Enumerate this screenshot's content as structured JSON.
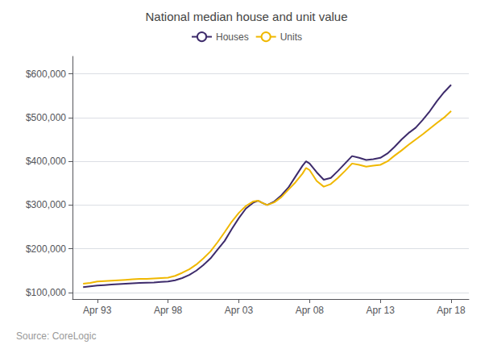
{
  "chart_data": {
    "type": "line",
    "title": "National median house and unit value",
    "annotations": [
      "Source: CoreLogic"
    ],
    "x": [
      1992.25,
      1992.75,
      1993.25,
      1993.75,
      1994.25,
      1994.75,
      1995.25,
      1995.75,
      1996.25,
      1996.75,
      1997.25,
      1997.75,
      1998.25,
      1998.75,
      1999.25,
      1999.75,
      2000.25,
      2000.75,
      2001.25,
      2001.75,
      2002.25,
      2002.75,
      2003.25,
      2003.75,
      2004.25,
      2004.6,
      2004.9,
      2005.25,
      2005.75,
      2006.25,
      2006.75,
      2007.25,
      2007.75,
      2008.0,
      2008.25,
      2008.75,
      2009.25,
      2009.75,
      2010.25,
      2010.75,
      2011.25,
      2011.75,
      2012.25,
      2012.75,
      2013.25,
      2013.75,
      2014.25,
      2014.75,
      2015.25,
      2015.75,
      2016.25,
      2016.75,
      2017.25,
      2017.75,
      2018.25
    ],
    "series": [
      {
        "name": "Houses",
        "color": "#3d2b6b",
        "values": [
          112000,
          114000,
          116000,
          117000,
          118000,
          119000,
          120000,
          121000,
          122000,
          122500,
          123000,
          124000,
          125000,
          128000,
          133000,
          140000,
          150000,
          163000,
          178000,
          198000,
          218000,
          245000,
          270000,
          292000,
          305000,
          310000,
          305000,
          300000,
          308000,
          322000,
          340000,
          365000,
          390000,
          400000,
          395000,
          375000,
          358000,
          362000,
          378000,
          395000,
          412000,
          408000,
          403000,
          405000,
          408000,
          418000,
          433000,
          450000,
          465000,
          477000,
          495000,
          515000,
          538000,
          558000,
          575000
        ]
      },
      {
        "name": "Units",
        "color": "#f0b800",
        "values": [
          120000,
          122000,
          125000,
          126000,
          127000,
          128000,
          129000,
          130000,
          131000,
          131000,
          132000,
          133000,
          134000,
          138000,
          145000,
          153000,
          164000,
          178000,
          194000,
          215000,
          238000,
          262000,
          282000,
          298000,
          308000,
          310000,
          305000,
          300000,
          306000,
          318000,
          335000,
          352000,
          372000,
          385000,
          380000,
          355000,
          342000,
          348000,
          362000,
          378000,
          395000,
          392000,
          388000,
          390000,
          392000,
          400000,
          413000,
          425000,
          438000,
          450000,
          462000,
          475000,
          488000,
          500000,
          515000
        ]
      }
    ],
    "xlim": [
      1991.5,
      2019.5
    ],
    "xticks": [
      {
        "value": 1993.25,
        "label": "Apr 93"
      },
      {
        "value": 1998.25,
        "label": "Apr 98"
      },
      {
        "value": 2003.25,
        "label": "Apr 03"
      },
      {
        "value": 2008.25,
        "label": "Apr 08"
      },
      {
        "value": 2013.25,
        "label": "Apr 13"
      },
      {
        "value": 2018.25,
        "label": "Apr 18"
      }
    ],
    "ylim": [
      85000,
      640000
    ],
    "yticks": [
      {
        "value": 100000,
        "label": "$100,000"
      },
      {
        "value": 200000,
        "label": "$200,000"
      },
      {
        "value": 300000,
        "label": "$300,000"
      },
      {
        "value": 400000,
        "label": "$400,000"
      },
      {
        "value": 500000,
        "label": "$500,000"
      },
      {
        "value": 600000,
        "label": "$600,000"
      }
    ],
    "grid": true,
    "legend": "top"
  }
}
